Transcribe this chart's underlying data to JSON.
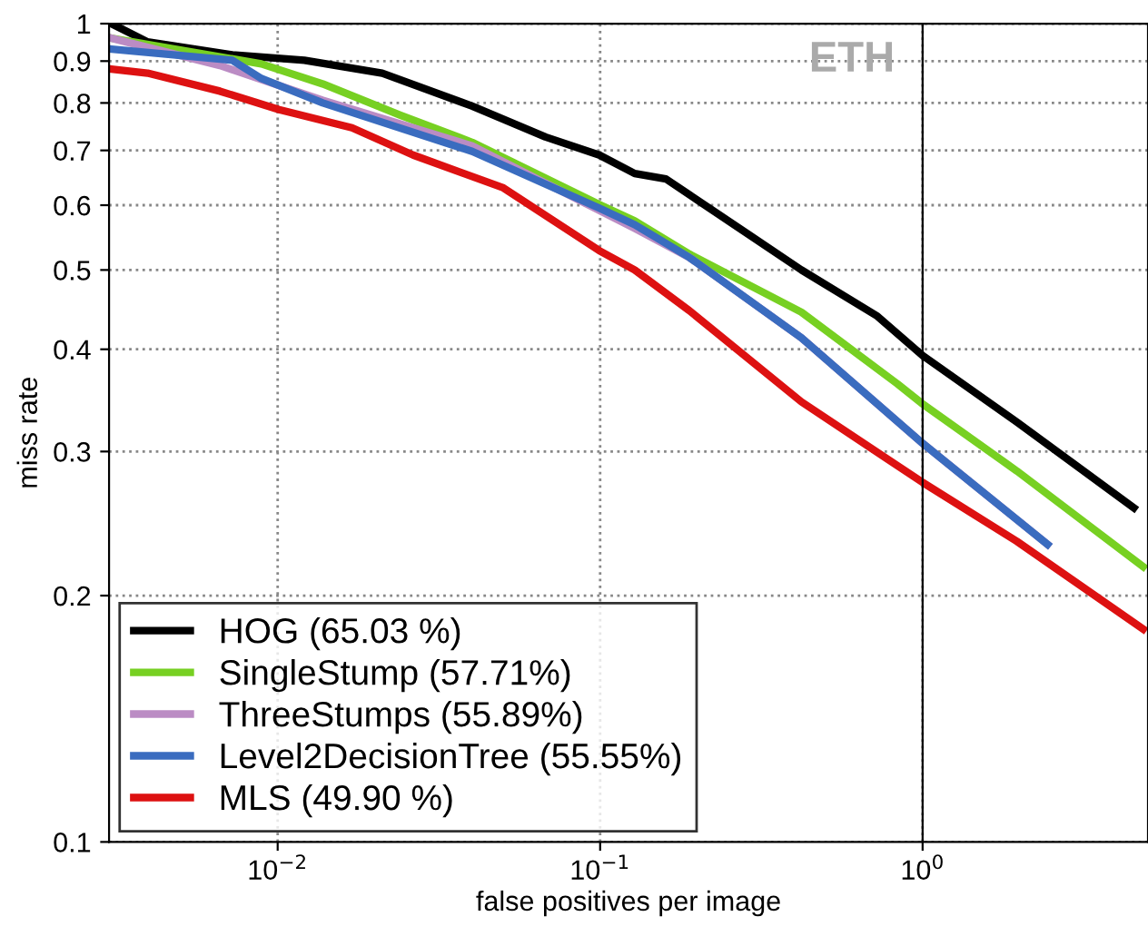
{
  "chart_data": {
    "type": "line",
    "xlabel": "false positives per image",
    "ylabel": "miss rate",
    "log": "xy",
    "xlim": [
      0.003,
      5
    ],
    "ylim": [
      0.1,
      1
    ],
    "xticks": [
      {
        "value": 0.01,
        "label": "10$^{−2}$"
      },
      {
        "value": 0.1,
        "label": "10$^{−1}$"
      },
      {
        "value": 1,
        "label": "10$^{0}$"
      }
    ],
    "yticks": [
      0.1,
      0.2,
      0.3,
      0.4,
      0.5,
      0.6,
      0.7,
      0.8,
      0.9,
      1
    ],
    "grid": true,
    "legend": "bottom left",
    "line_style": "solid",
    "marker": "none",
    "annotations": [
      "ETH"
    ],
    "ref_lines": [
      {
        "axis": "x",
        "value": 1,
        "color": "#000000"
      }
    ],
    "series": [
      {
        "name": "HOG (65.03 %)",
        "color": "#000000",
        "x": [
          0.00305,
          0.00395,
          0.00724,
          0.0121,
          0.0211,
          0.0401,
          0.0677,
          0.0994,
          0.128,
          0.16,
          0.421,
          0.724,
          1,
          1.96,
          4.52
        ],
        "values": [
          1,
          0.95,
          0.916,
          0.902,
          0.87,
          0.793,
          0.727,
          0.691,
          0.656,
          0.646,
          0.5,
          0.439,
          0.393,
          0.326,
          0.256
        ]
      },
      {
        "name": "SingleStump (57.71%)",
        "color": "#77d022",
        "x": [
          0.00305,
          0.0089,
          0.0138,
          0.024,
          0.0401,
          0.0994,
          0.128,
          0.189,
          0.421,
          0.835,
          1,
          1.96,
          4.83
        ],
        "values": [
          0.96,
          0.893,
          0.844,
          0.773,
          0.716,
          0.601,
          0.574,
          0.523,
          0.444,
          0.363,
          0.343,
          0.284,
          0.217
        ]
      },
      {
        "name": "ThreeStumps (55.89%)",
        "color": "#bb8cc4",
        "x": [
          0.00305,
          0.00662,
          0.0138,
          0.0401,
          0.128,
          0.189,
          0.421,
          1,
          2.44
        ],
        "values": [
          0.96,
          0.889,
          0.806,
          0.709,
          0.562,
          0.518,
          0.413,
          0.307,
          0.231
        ]
      },
      {
        "name": "Level2DecisionTree (55.55%)",
        "color": "#3a6cbf",
        "x": [
          0.00305,
          0.00724,
          0.0089,
          0.0138,
          0.0401,
          0.0994,
          0.128,
          0.189,
          0.421,
          1,
          2.44
        ],
        "values": [
          0.931,
          0.902,
          0.857,
          0.8,
          0.698,
          0.595,
          0.568,
          0.518,
          0.413,
          0.307,
          0.231
        ]
      },
      {
        "name": "MLS (49.90 %)",
        "color": "#dd1111",
        "x": [
          0.00305,
          0.00395,
          0.00662,
          0.0101,
          0.017,
          0.0263,
          0.0501,
          0.0994,
          0.128,
          0.189,
          0.421,
          1,
          1.96,
          4.83
        ],
        "values": [
          0.88,
          0.87,
          0.827,
          0.785,
          0.746,
          0.691,
          0.63,
          0.528,
          0.5,
          0.446,
          0.345,
          0.275,
          0.233,
          0.182
        ]
      }
    ]
  }
}
